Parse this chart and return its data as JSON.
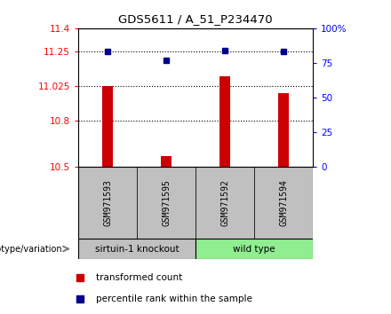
{
  "title": "GDS5611 / A_51_P234470",
  "samples": [
    "GSM971593",
    "GSM971595",
    "GSM971592",
    "GSM971594"
  ],
  "bar_values": [
    11.025,
    10.565,
    11.09,
    10.975
  ],
  "percentile_values": [
    83,
    77,
    84,
    83
  ],
  "ylim_left": [
    10.5,
    11.4
  ],
  "ylim_right": [
    0,
    100
  ],
  "yticks_left": [
    10.5,
    10.8,
    11.025,
    11.25,
    11.4
  ],
  "ytick_labels_left": [
    "10.5",
    "10.8",
    "11.025",
    "11.25",
    "11.4"
  ],
  "yticks_right": [
    0,
    25,
    50,
    75,
    100
  ],
  "ytick_labels_right": [
    "0",
    "25",
    "50",
    "75",
    "100%"
  ],
  "bar_color": "#cc0000",
  "dot_color": "#00008b",
  "group1_label": "sirtuin-1 knockout",
  "group2_label": "wild type",
  "group1_color": "#c0c0c0",
  "group2_color": "#90ee90",
  "genotype_label": "genotype/variation",
  "legend_bar_label": "transformed count",
  "legend_dot_label": "percentile rank within the sample",
  "dotted_lines": [
    11.25,
    11.025,
    10.8
  ],
  "bar_baseline": 10.5
}
